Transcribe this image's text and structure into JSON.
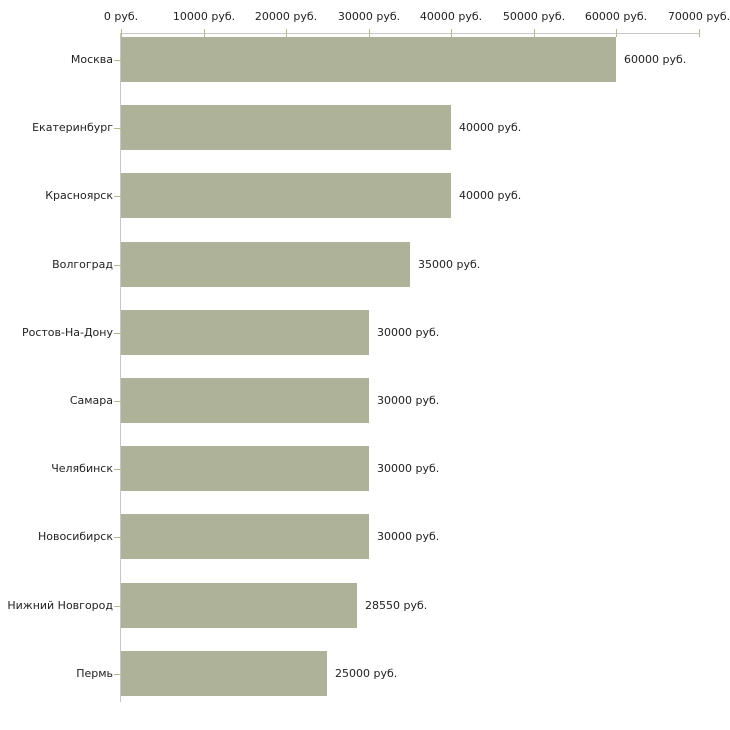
{
  "chart_data": {
    "type": "bar",
    "orientation": "horizontal",
    "title": "",
    "xlabel": "",
    "ylabel": "",
    "categories": [
      "Москва",
      "Екатеринбург",
      "Красноярск",
      "Волгоград",
      "Ростов-На-Дону",
      "Самара",
      "Челябинск",
      "Новосибирск",
      "Нижний Новгород",
      "Пермь"
    ],
    "values": [
      60000,
      40000,
      40000,
      35000,
      30000,
      30000,
      30000,
      30000,
      28550,
      25000
    ],
    "value_labels": [
      "60000 руб.",
      "40000 руб.",
      "40000 руб.",
      "35000 руб.",
      "30000 руб.",
      "30000 руб.",
      "30000 руб.",
      "30000 руб.",
      "28550 руб.",
      "25000 руб."
    ],
    "x_tick_values": [
      0,
      10000,
      20000,
      30000,
      40000,
      50000,
      60000,
      70000
    ],
    "x_tick_labels": [
      "0 руб.",
      "10000 руб.",
      "20000 руб.",
      "30000 руб.",
      "40000 руб.",
      "50000 руб.",
      "60000 руб.",
      "70000 руб."
    ],
    "xlim": [
      0,
      70000
    ],
    "grid": false,
    "legend": false,
    "axis_position": "top",
    "colors": {
      "bar": "#adb299",
      "axis_line": "#c6c6c6",
      "tick_mark": "#b5ba8a",
      "text": "#222222",
      "background": "#ffffff"
    }
  }
}
